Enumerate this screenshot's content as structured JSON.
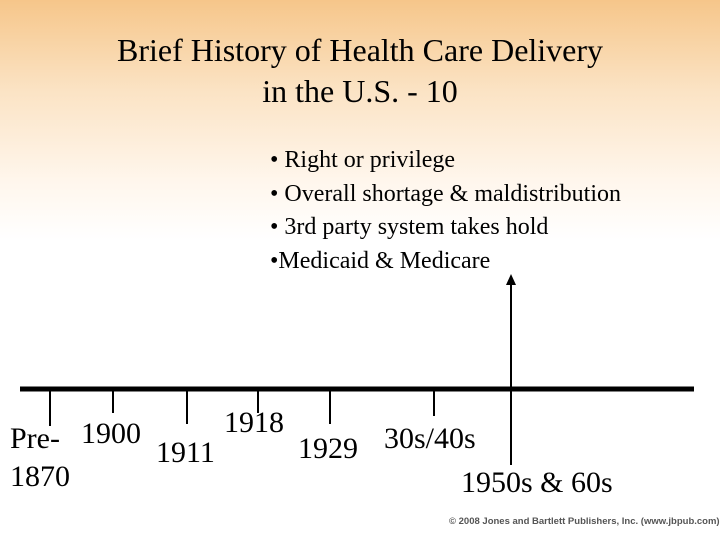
{
  "title": {
    "line1": "Brief History of Health Care Delivery",
    "line2": "in the U.S. - 10"
  },
  "bullets": [
    "• Right or privilege",
    "• Overall shortage & maldistribution",
    "• 3rd party system takes hold",
    "•Medicaid & Medicare"
  ],
  "timeline": {
    "labels": {
      "pre1870_a": "Pre-",
      "pre1870_b": "1870",
      "y1900": "1900",
      "y1911": "1911",
      "y1918": "1918",
      "y1929": "1929",
      "y3040": "30s/40s",
      "y5060": "1950s & 60s"
    }
  },
  "footer": "© 2008 Jones and Bartlett Publishers, Inc. (www.jbpub.com)"
}
